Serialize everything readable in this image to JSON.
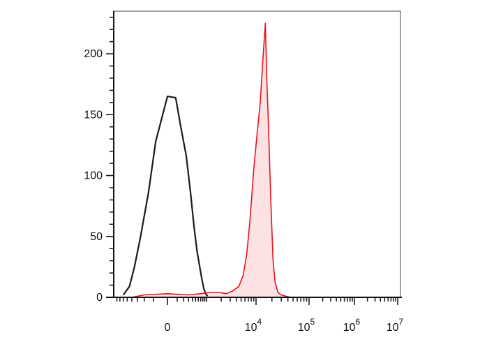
{
  "chart_data": {
    "type": "area",
    "title": "",
    "xlabel": "",
    "ylabel": "",
    "x_scale": "biexponential",
    "ylim": [
      0,
      235
    ],
    "y_ticks": [
      {
        "value": 0,
        "label": "0"
      },
      {
        "value": 50,
        "label": "50"
      },
      {
        "value": 100,
        "label": "100"
      },
      {
        "value": 150,
        "label": "150"
      },
      {
        "value": 200,
        "label": "200"
      }
    ],
    "x_ticks": [
      {
        "value": 0,
        "base": "0",
        "exp": ""
      },
      {
        "value": 10000,
        "base": "10",
        "exp": "4"
      },
      {
        "value": 100000,
        "base": "10",
        "exp": "5"
      },
      {
        "value": 1000000,
        "base": "10",
        "exp": "6"
      },
      {
        "value": 10000000,
        "base": "10",
        "exp": "7"
      }
    ],
    "series": [
      {
        "color": "#1a1a1a",
        "fill": "none",
        "x": [
          -600,
          -450,
          -350,
          -250,
          -150,
          -80,
          0,
          80,
          150,
          250,
          350,
          450,
          550,
          650,
          750,
          850,
          950,
          1050
        ],
        "y": [
          2,
          9,
          25,
          50,
          86,
          128,
          165,
          164,
          140,
          116,
          86,
          58,
          38,
          26,
          15,
          7,
          3,
          1
        ]
      },
      {
        "color": "#e8141c",
        "fill": "#fde2e4",
        "x": [
          -400,
          -200,
          0,
          300,
          700,
          1200,
          1800,
          2500,
          3300,
          4500,
          5500,
          6500,
          7500,
          9000,
          10500,
          12000,
          13500,
          15000,
          16000,
          17500,
          19000,
          21000,
          23000,
          26000,
          30000,
          36000,
          45000
        ],
        "y": [
          0,
          2,
          3,
          2,
          3,
          4,
          4,
          3,
          5,
          9,
          18,
          35,
          62,
          105,
          135,
          160,
          195,
          225,
          180,
          130,
          80,
          30,
          12,
          4,
          2,
          1,
          0
        ]
      }
    ]
  }
}
